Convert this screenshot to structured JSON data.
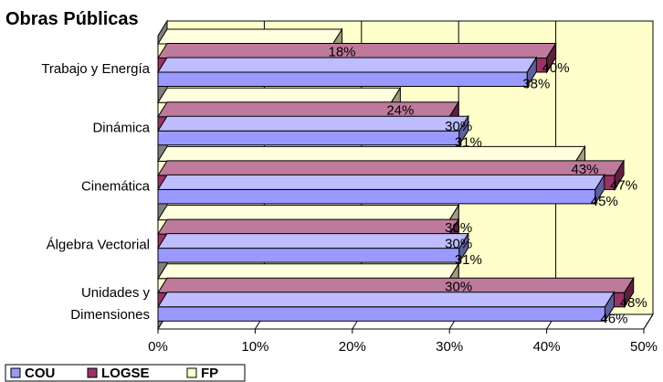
{
  "chart_data": {
    "type": "bar",
    "orientation": "horizontal",
    "style": "3d-clustered",
    "title": "Obras Públicas",
    "categories": [
      "Unidades y Dimensiones",
      "Álgebra Vectorial",
      "Cinemática",
      "Dinámica",
      "Trabajo y Energía"
    ],
    "category_lines": [
      [
        "Unidades y",
        "Dimensiones"
      ],
      [
        "Álgebra Vectorial"
      ],
      [
        "Cinemática"
      ],
      [
        "Dinámica"
      ],
      [
        "Trabajo y Energía"
      ]
    ],
    "series": [
      {
        "name": "COU",
        "values": [
          46,
          31,
          45,
          31,
          38
        ],
        "labels": [
          "46%",
          "31%",
          "45%",
          "31%",
          "38%"
        ]
      },
      {
        "name": "LOGSE",
        "values": [
          48,
          30,
          47,
          30,
          40
        ],
        "labels": [
          "48%",
          "30%",
          "47%",
          "30%",
          "40%"
        ]
      },
      {
        "name": "FP",
        "values": [
          30,
          30,
          43,
          24,
          18
        ],
        "labels": [
          "30%",
          "30%",
          "43%",
          "24%",
          "18%"
        ]
      }
    ],
    "xlim": [
      0,
      50
    ],
    "xticks": [
      "0%",
      "10%",
      "20%",
      "30%",
      "40%",
      "50%"
    ],
    "grid": true,
    "legend": "bottom-left",
    "colors": {
      "COU": "#9999ff",
      "LOGSE": "#993366",
      "FP": "#ffffcc",
      "plot_background": "#ffffcc",
      "wall": "#808080"
    }
  }
}
